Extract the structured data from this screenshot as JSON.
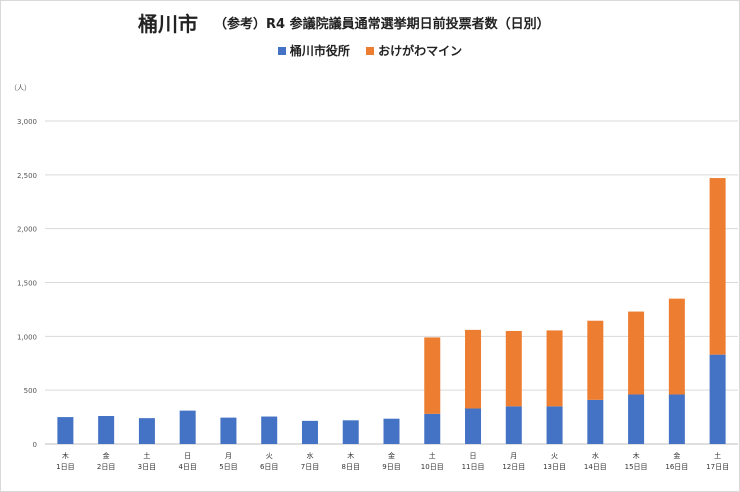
{
  "title": {
    "main": "桶川市",
    "sub": "（参考）R4 参議院議員通常選挙期日前投票者数（日別）"
  },
  "unit_label": "（人）",
  "colors": {
    "series1": "#4472C4",
    "series2": "#ED7D31",
    "grid": "#d9d9d9"
  },
  "chart_data": {
    "type": "bar",
    "stacked": true,
    "title": "桶川市 （参考）R4 参議院議員通常選挙期日前投票者数（日別）",
    "ylabel": "（人）",
    "ylim": [
      0,
      3000
    ],
    "yticks": [
      "0",
      "500",
      "1,000",
      "1,500",
      "2,000",
      "2,500",
      "3,000"
    ],
    "ytick_values": [
      0,
      500,
      1000,
      1500,
      2000,
      2500,
      3000
    ],
    "grid": true,
    "legend": "top-center",
    "categories": [
      [
        "木",
        "1日目"
      ],
      [
        "金",
        "2日目"
      ],
      [
        "土",
        "3日目"
      ],
      [
        "日",
        "4日目"
      ],
      [
        "月",
        "5日目"
      ],
      [
        "火",
        "6日目"
      ],
      [
        "水",
        "7日目"
      ],
      [
        "木",
        "8日目"
      ],
      [
        "金",
        "9日目"
      ],
      [
        "土",
        "10日目"
      ],
      [
        "日",
        "11日目"
      ],
      [
        "月",
        "12日目"
      ],
      [
        "火",
        "13日目"
      ],
      [
        "水",
        "14日目"
      ],
      [
        "木",
        "15日目"
      ],
      [
        "金",
        "16日目"
      ],
      [
        "土",
        "17日目"
      ]
    ],
    "series": [
      {
        "name": "桶川市役所",
        "values": [
          250,
          260,
          240,
          310,
          245,
          255,
          215,
          220,
          235,
          280,
          330,
          350,
          350,
          410,
          460,
          460,
          830
        ]
      },
      {
        "name": "おけがわマイン",
        "values": [
          0,
          0,
          0,
          0,
          0,
          0,
          0,
          0,
          0,
          710,
          730,
          700,
          705,
          735,
          770,
          890,
          1640
        ]
      }
    ]
  }
}
